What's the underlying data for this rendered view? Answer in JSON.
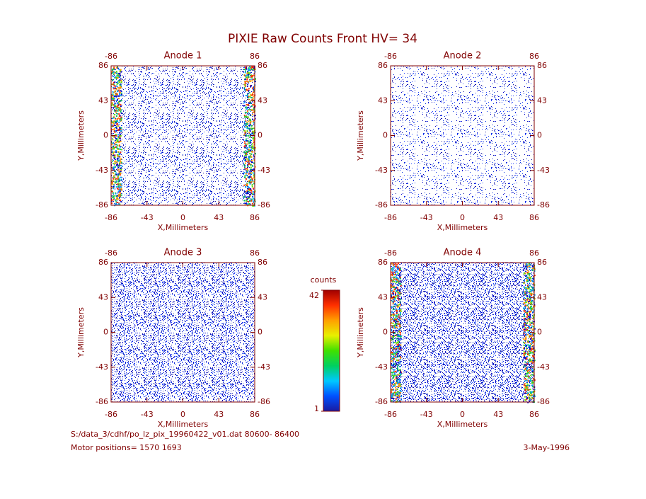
{
  "title": "PIXIE Raw Counts Front HV= 34",
  "chart_data": [
    {
      "type": "heatmap",
      "title": "Anode 1",
      "xlabel": "X,Millimeters",
      "ylabel": "Y,Millimeters",
      "xlim": [
        -86,
        86
      ],
      "ylim": [
        -86,
        86
      ],
      "xticks": [
        -86,
        -43,
        0,
        43,
        86
      ],
      "yticks": [
        -86,
        -43,
        0,
        43,
        86
      ]
    },
    {
      "type": "heatmap",
      "title": "Anode 2",
      "xlabel": "X,Millimeters",
      "ylabel": "Y,Millimeters",
      "xlim": [
        -86,
        86
      ],
      "ylim": [
        -86,
        86
      ],
      "xticks": [
        -86,
        -43,
        0,
        43,
        86
      ],
      "yticks": [
        -86,
        -43,
        0,
        43,
        86
      ]
    },
    {
      "type": "heatmap",
      "title": "Anode 3",
      "xlabel": "X,Millimeters",
      "ylabel": "Y,Millimeters",
      "xlim": [
        -86,
        86
      ],
      "ylim": [
        -86,
        86
      ],
      "xticks": [
        -86,
        -43,
        0,
        43,
        86
      ],
      "yticks": [
        -86,
        -43,
        0,
        43,
        86
      ]
    },
    {
      "type": "heatmap",
      "title": "Anode 4",
      "xlabel": "X,Millimeters",
      "ylabel": "Y,Millimeters",
      "xlim": [
        -86,
        86
      ],
      "ylim": [
        -86,
        86
      ],
      "xticks": [
        -86,
        -43,
        0,
        43,
        86
      ],
      "yticks": [
        -86,
        -43,
        0,
        43,
        86
      ]
    }
  ],
  "colorbar": {
    "label": "counts",
    "lim": [
      1,
      42
    ],
    "ticks": [
      1,
      42
    ],
    "colors": [
      "#1a1aa0",
      "#0050ff",
      "#00c8ff",
      "#00d060",
      "#40e000",
      "#e8f000",
      "#ffa000",
      "#ff3000",
      "#a00000"
    ]
  },
  "footer": {
    "file": "S:/data_3/cdhf/po_lz_pix_19960422_v01.dat   80600- 86400",
    "motor": "Motor positions= 1570 1693",
    "date": "3-May-1996"
  }
}
